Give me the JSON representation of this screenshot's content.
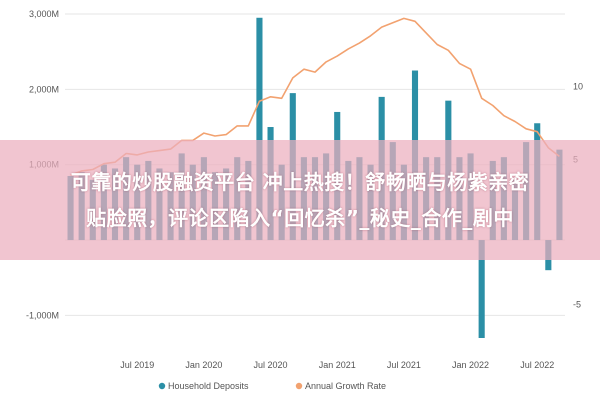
{
  "banner": {
    "line1": "可靠的炒股融资平台 冲上热搜！舒畅晒与杨紫亲密",
    "line2": "贴脸照，评论区陷入“回忆杀”_秘史_合作_剧中"
  },
  "colors": {
    "bars": "#2b8fa6",
    "line": "#f2a270",
    "grid": "#e6e6e6",
    "text": "#555555"
  },
  "chart_data": {
    "type": "bar",
    "xlabel": "",
    "ylabel": "",
    "ylim_left": [
      -1300,
      3000
    ],
    "ylim_right": [
      -7.3,
      15
    ],
    "yticks_left": [
      {
        "value": 3000,
        "label": "3,000M"
      },
      {
        "value": 2000,
        "label": "2,000M"
      },
      {
        "value": 1000,
        "label": "1,000M"
      },
      {
        "value": -1000,
        "label": "-1,000M"
      }
    ],
    "yticks_right": [
      {
        "value": 10,
        "label": "10"
      },
      {
        "value": 5,
        "label": "5"
      },
      {
        "value": -5,
        "label": "-5"
      }
    ],
    "xtick_labels": [
      "Jul 2019",
      "Jan 2020",
      "Jul 2020",
      "Jan 2021",
      "Jul 2021",
      "Jan 2022",
      "Jul 2022"
    ],
    "x_start": "Jan 2019",
    "x_end": "Sep 2022",
    "grid": "horizontal",
    "legend": {
      "position": "bottom",
      "entries": [
        "Household Deposits",
        "Annual Growth Rate"
      ]
    },
    "series": [
      {
        "name": "Household Deposits",
        "kind": "bar",
        "axis": "left",
        "x": [
          "Jan 2019",
          "Feb 2019",
          "Mar 2019",
          "Apr 2019",
          "May 2019",
          "Jun 2019",
          "Jul 2019",
          "Aug 2019",
          "Sep 2019",
          "Oct 2019",
          "Nov 2019",
          "Dec 2019",
          "Jan 2020",
          "Feb 2020",
          "Mar 2020",
          "Apr 2020",
          "May 2020",
          "Jun 2020",
          "Jul 2020",
          "Aug 2020",
          "Sep 2020",
          "Oct 2020",
          "Nov 2020",
          "Dec 2020",
          "Jan 2021",
          "Feb 2021",
          "Mar 2021",
          "Apr 2021",
          "May 2021",
          "Jun 2021",
          "Jul 2021",
          "Aug 2021",
          "Sep 2021",
          "Oct 2021",
          "Nov 2021",
          "Dec 2021",
          "Jan 2022",
          "Feb 2022",
          "Mar 2022",
          "Apr 2022",
          "May 2022",
          "Jun 2022",
          "Jul 2022",
          "Aug 2022",
          "Sep 2022"
        ],
        "values": [
          850,
          900,
          800,
          1000,
          950,
          1100,
          1000,
          1050,
          950,
          900,
          1150,
          1000,
          1100,
          900,
          950,
          1100,
          1050,
          2950,
          1500,
          1000,
          1950,
          1100,
          1100,
          1150,
          1700,
          1050,
          1100,
          1000,
          1900,
          1300,
          1000,
          2250,
          1100,
          1100,
          1850,
          1100,
          1150,
          -1300,
          1050,
          1100,
          800,
          1300,
          1550,
          -400,
          1200
        ]
      },
      {
        "name": "Annual Growth Rate",
        "kind": "line",
        "axis": "right",
        "x": [
          "Jan 2019",
          "Feb 2019",
          "Mar 2019",
          "Apr 2019",
          "May 2019",
          "Jun 2019",
          "Jul 2019",
          "Aug 2019",
          "Sep 2019",
          "Oct 2019",
          "Nov 2019",
          "Dec 2019",
          "Jan 2020",
          "Feb 2020",
          "Mar 2020",
          "Apr 2020",
          "May 2020",
          "Jun 2020",
          "Jul 2020",
          "Aug 2020",
          "Sep 2020",
          "Oct 2020",
          "Nov 2020",
          "Dec 2020",
          "Jan 2021",
          "Feb 2021",
          "Mar 2021",
          "Apr 2021",
          "May 2021",
          "Jun 2021",
          "Jul 2021",
          "Aug 2021",
          "Sep 2021",
          "Oct 2021",
          "Nov 2021",
          "Dec 2021",
          "Jan 2022",
          "Feb 2022",
          "Mar 2022",
          "Apr 2022",
          "May 2022",
          "Jun 2022",
          "Jul 2022",
          "Aug 2022",
          "Sep 2022"
        ],
        "values": [
          3.9,
          4.2,
          4.3,
          4.7,
          4.8,
          5.4,
          5.3,
          5.5,
          5.6,
          5.7,
          6.3,
          6.3,
          6.8,
          6.6,
          6.7,
          7.3,
          7.3,
          9.0,
          9.3,
          9.2,
          10.6,
          11.2,
          11.0,
          11.7,
          12.1,
          12.6,
          13.0,
          13.5,
          14.1,
          14.4,
          14.7,
          14.5,
          13.7,
          12.9,
          12.5,
          11.6,
          11.2,
          9.2,
          8.7,
          8.0,
          7.6,
          7.1,
          6.9,
          5.8,
          5.2
        ]
      }
    ]
  }
}
